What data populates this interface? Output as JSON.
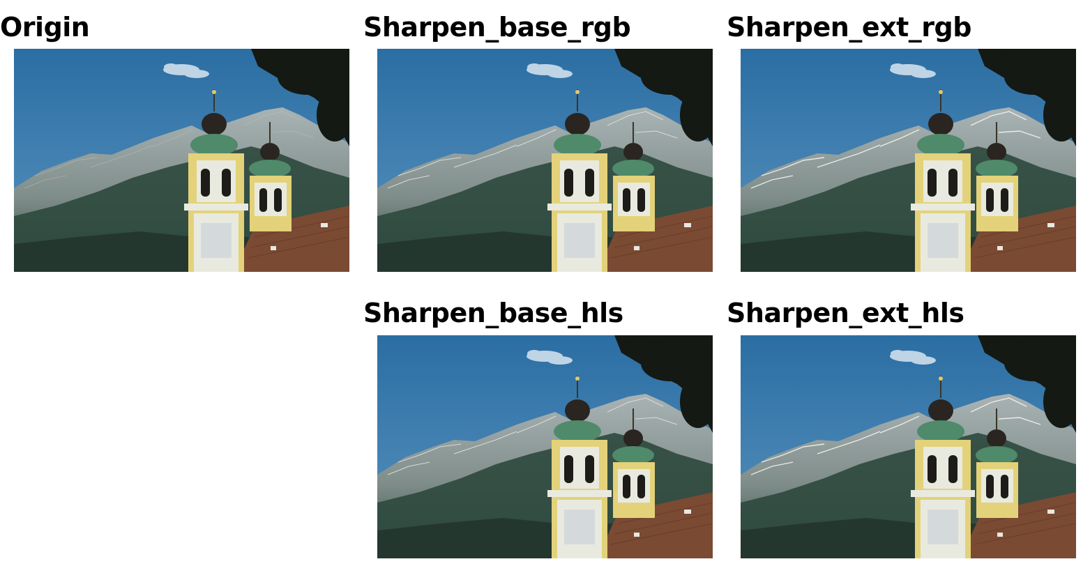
{
  "panels": [
    {
      "id": "origin",
      "title": "Origin",
      "variant": "original"
    },
    {
      "id": "sharpen_base_rgb",
      "title": "Sharpen_base_rgb",
      "variant": "sharpened"
    },
    {
      "id": "sharpen_ext_rgb",
      "title": "Sharpen_ext_rgb",
      "variant": "sharpened-strong"
    },
    {
      "id": "sharpen_base_hls",
      "title": "Sharpen_base_hls",
      "variant": "sharpened"
    },
    {
      "id": "sharpen_ext_hls",
      "title": "Sharpen_ext_hls",
      "variant": "sharpened-strong"
    }
  ],
  "scene": {
    "subject": "church-towers-with-mountains",
    "colors": {
      "sky_top": "#2b6ea3",
      "sky_bottom": "#5a93bf",
      "mountain_rock": "#a9b3b4",
      "mountain_forest": "#2f4a3f",
      "tower_yellow": "#e3d27a",
      "tower_white": "#e9eadf",
      "dome_green": "#4f8a6a",
      "dome_dark": "#2a2520",
      "roof_brown": "#7a4a33",
      "foliage": "#141914"
    }
  }
}
